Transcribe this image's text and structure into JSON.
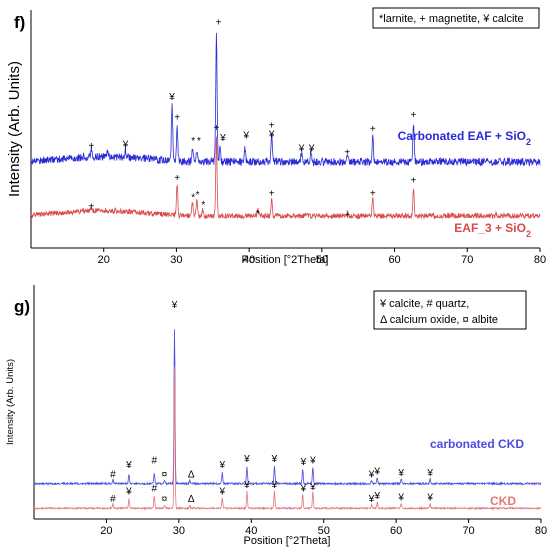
{
  "chart_data": [
    {
      "type": "line",
      "panel_label": "f)",
      "xlabel": "Position [°2Theta]",
      "ylabel": "Intensity (Arb. Units)",
      "xlim": [
        10,
        80
      ],
      "x_ticks": [
        20,
        30,
        40,
        50,
        60,
        70,
        80
      ],
      "legend_text": "*larnite, + magnetite, ¥ calcite",
      "legend_position": "top-right",
      "series": [
        {
          "name": "Carbonated EAF + SiO",
          "name_sub": "2",
          "color": "#2a2ad6",
          "baseline": 0.42,
          "noise": 0.06,
          "x_start": 10,
          "peaks": [
            [
              18.3,
              0.07
            ],
            [
              20.5,
              0.06
            ],
            [
              23.0,
              0.06
            ],
            [
              29.4,
              0.42
            ],
            [
              30.1,
              0.26
            ],
            [
              32.2,
              0.09
            ],
            [
              32.8,
              0.08
            ],
            [
              35.5,
              1.0
            ],
            [
              36.0,
              0.1
            ],
            [
              39.4,
              0.12
            ],
            [
              43.1,
              0.2
            ],
            [
              47.2,
              0.07
            ],
            [
              48.5,
              0.08
            ],
            [
              53.5,
              0.06
            ],
            [
              57.0,
              0.2
            ],
            [
              62.6,
              0.3
            ]
          ]
        },
        {
          "name": "EAF_3 + SiO",
          "name_sub": "2",
          "color": "#d94a4a",
          "baseline": 0.0,
          "noise": 0.04,
          "x_start": 10,
          "peaks": [
            [
              18.3,
              0.03
            ],
            [
              30.1,
              0.24
            ],
            [
              32.2,
              0.1
            ],
            [
              32.8,
              0.12
            ],
            [
              33.6,
              0.05
            ],
            [
              35.5,
              0.63
            ],
            [
              41.2,
              0.04
            ],
            [
              43.1,
              0.12
            ],
            [
              53.5,
              0.03
            ],
            [
              57.0,
              0.13
            ],
            [
              62.6,
              0.22
            ],
            [
              74.0,
              0.02
            ]
          ]
        }
      ],
      "peak_markers": [
        {
          "x": 18.3,
          "y": 0.52,
          "symbol": "+"
        },
        {
          "x": 23.0,
          "y": 0.53,
          "symbol": "¥"
        },
        {
          "x": 29.4,
          "y": 0.9,
          "symbol": "¥"
        },
        {
          "x": 30.1,
          "y": 0.74,
          "symbol": "+"
        },
        {
          "x": 32.3,
          "y": 0.56,
          "symbol": "*"
        },
        {
          "x": 33.1,
          "y": 0.56,
          "symbol": "*"
        },
        {
          "x": 35.8,
          "y": 1.48,
          "symbol": "+"
        },
        {
          "x": 36.4,
          "y": 0.58,
          "symbol": "¥"
        },
        {
          "x": 39.6,
          "y": 0.6,
          "symbol": "¥"
        },
        {
          "x": 43.1,
          "y": 0.68,
          "symbol": "+"
        },
        {
          "x": 43.1,
          "y": 0.61,
          "symbol": "¥"
        },
        {
          "x": 47.2,
          "y": 0.5,
          "symbol": "¥"
        },
        {
          "x": 48.6,
          "y": 0.5,
          "symbol": "¥"
        },
        {
          "x": 53.5,
          "y": 0.47,
          "symbol": "+"
        },
        {
          "x": 57.0,
          "y": 0.65,
          "symbol": "+"
        },
        {
          "x": 62.6,
          "y": 0.76,
          "symbol": "+"
        },
        {
          "x": 18.3,
          "y": 0.05,
          "symbol": "+"
        },
        {
          "x": 30.1,
          "y": 0.27,
          "symbol": "+"
        },
        {
          "x": 32.3,
          "y": 0.12,
          "symbol": "*"
        },
        {
          "x": 32.9,
          "y": 0.14,
          "symbol": "*"
        },
        {
          "x": 33.7,
          "y": 0.06,
          "symbol": "*"
        },
        {
          "x": 35.5,
          "y": 0.66,
          "symbol": "+"
        },
        {
          "x": 41.2,
          "y": -0.01,
          "symbol": "*"
        },
        {
          "x": 43.1,
          "y": 0.15,
          "symbol": "+"
        },
        {
          "x": 53.5,
          "y": -0.02,
          "symbol": "+"
        },
        {
          "x": 57.0,
          "y": 0.15,
          "symbol": "+"
        },
        {
          "x": 62.6,
          "y": 0.25,
          "symbol": "+"
        }
      ]
    },
    {
      "type": "line",
      "panel_label": "g)",
      "xlabel": "Position [°2Theta]",
      "ylabel": "Intensity (Arb. Units)",
      "xlim": [
        10,
        80
      ],
      "x_ticks": [
        20,
        30,
        40,
        50,
        60,
        70,
        80
      ],
      "legend_lines": [
        "¥ calcite, # quartz,",
        "Δ calcium oxide, ¤ albite"
      ],
      "legend_position": "top-right",
      "series": [
        {
          "name": "carbonated CKD",
          "color": "#4b4be0",
          "baseline": 0.16,
          "noise": 0.012,
          "x_start": 10,
          "peaks": [
            [
              20.9,
              0.03
            ],
            [
              23.1,
              0.06
            ],
            [
              26.6,
              0.07
            ],
            [
              28.0,
              0.02
            ],
            [
              29.4,
              1.0
            ],
            [
              31.5,
              0.02
            ],
            [
              36.0,
              0.07
            ],
            [
              39.4,
              0.11
            ],
            [
              43.2,
              0.11
            ],
            [
              47.1,
              0.09
            ],
            [
              48.5,
              0.11
            ],
            [
              56.6,
              0.02
            ],
            [
              57.4,
              0.04
            ],
            [
              60.7,
              0.03
            ],
            [
              64.7,
              0.03
            ]
          ]
        },
        {
          "name": "CKD",
          "color": "#e07a7a",
          "baseline": 0.0,
          "noise": 0.01,
          "x_start": 10,
          "peaks": [
            [
              20.9,
              0.03
            ],
            [
              23.1,
              0.06
            ],
            [
              26.6,
              0.08
            ],
            [
              28.0,
              0.02
            ],
            [
              29.4,
              0.92
            ],
            [
              31.5,
              0.02
            ],
            [
              36.0,
              0.07
            ],
            [
              39.4,
              0.11
            ],
            [
              43.2,
              0.11
            ],
            [
              47.1,
              0.09
            ],
            [
              48.5,
              0.11
            ],
            [
              56.6,
              0.02
            ],
            [
              57.4,
              0.04
            ],
            [
              60.7,
              0.03
            ],
            [
              64.7,
              0.03
            ]
          ]
        }
      ],
      "peak_markers": [
        {
          "x": 20.9,
          "y": 0.2,
          "symbol": "#"
        },
        {
          "x": 23.1,
          "y": 0.26,
          "symbol": "¥"
        },
        {
          "x": 26.6,
          "y": 0.29,
          "symbol": "#"
        },
        {
          "x": 28.0,
          "y": 0.2,
          "symbol": "¤"
        },
        {
          "x": 29.4,
          "y": 1.3,
          "symbol": "¥"
        },
        {
          "x": 31.7,
          "y": 0.2,
          "symbol": "Δ"
        },
        {
          "x": 36.0,
          "y": 0.26,
          "symbol": "¥"
        },
        {
          "x": 39.4,
          "y": 0.3,
          "symbol": "¥"
        },
        {
          "x": 43.2,
          "y": 0.3,
          "symbol": "¥"
        },
        {
          "x": 47.2,
          "y": 0.28,
          "symbol": "¥"
        },
        {
          "x": 48.5,
          "y": 0.29,
          "symbol": "¥"
        },
        {
          "x": 56.6,
          "y": 0.2,
          "symbol": "¥"
        },
        {
          "x": 57.4,
          "y": 0.22,
          "symbol": "¥"
        },
        {
          "x": 60.7,
          "y": 0.21,
          "symbol": "¥"
        },
        {
          "x": 64.7,
          "y": 0.21,
          "symbol": "¥"
        },
        {
          "x": 20.9,
          "y": 0.04,
          "symbol": "#"
        },
        {
          "x": 23.1,
          "y": 0.09,
          "symbol": "¥"
        },
        {
          "x": 26.6,
          "y": 0.11,
          "symbol": "#"
        },
        {
          "x": 28.0,
          "y": 0.04,
          "symbol": "¤"
        },
        {
          "x": 31.7,
          "y": 0.04,
          "symbol": "Δ"
        },
        {
          "x": 36.0,
          "y": 0.09,
          "symbol": "¥"
        },
        {
          "x": 39.4,
          "y": 0.13,
          "symbol": "¥"
        },
        {
          "x": 43.2,
          "y": 0.13,
          "symbol": "¥"
        },
        {
          "x": 47.2,
          "y": 0.11,
          "symbol": "¥"
        },
        {
          "x": 48.5,
          "y": 0.12,
          "symbol": "¥"
        },
        {
          "x": 56.6,
          "y": 0.04,
          "symbol": "¥"
        },
        {
          "x": 57.4,
          "y": 0.06,
          "symbol": "¥"
        },
        {
          "x": 60.7,
          "y": 0.05,
          "symbol": "¥"
        },
        {
          "x": 64.7,
          "y": 0.05,
          "symbol": "¥"
        }
      ]
    }
  ]
}
